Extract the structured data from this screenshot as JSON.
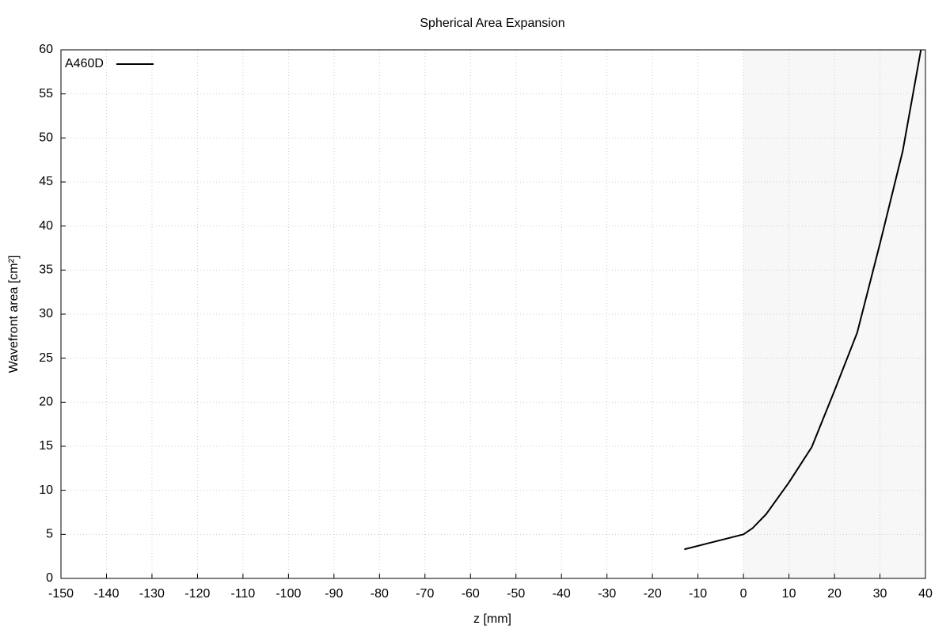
{
  "chart_data": {
    "type": "line",
    "title": "Spherical Area Expansion",
    "x_label": "z [mm]",
    "y_label": "Wavefront area [cm²]",
    "x": [
      -13,
      0,
      2,
      5,
      10,
      15,
      20,
      25,
      30,
      35,
      39
    ],
    "series": [
      {
        "name": "A460D",
        "color": "#000000",
        "values": [
          3.3,
          5.0,
          5.7,
          7.3,
          10.9,
          14.9,
          21.3,
          27.9,
          38.0,
          48.5,
          60.0
        ]
      }
    ],
    "xlim": [
      -150,
      40
    ],
    "xticks": [
      -150,
      -140,
      -130,
      -120,
      -110,
      -100,
      -90,
      -80,
      -70,
      -60,
      -50,
      -40,
      -30,
      -20,
      -10,
      0,
      10,
      20,
      30,
      40
    ],
    "ylim": [
      0,
      60
    ],
    "yticks": [
      0,
      5,
      10,
      15,
      20,
      25,
      30,
      35,
      40,
      45,
      50,
      55,
      60
    ],
    "grid": true,
    "legend": "top-left",
    "shaded_xrange": [
      0,
      40
    ],
    "shade_color": "#f7f7f7"
  }
}
